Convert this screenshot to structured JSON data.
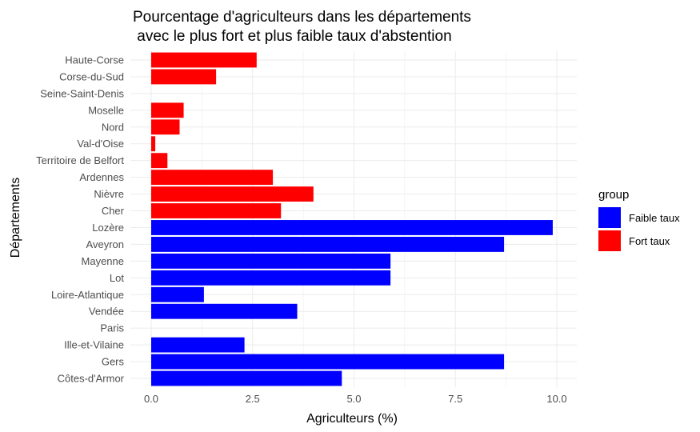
{
  "chart_data": {
    "type": "bar",
    "orientation": "horizontal",
    "title": [
      "Pourcentage d'agriculteurs dans les départements",
      " avec le plus fort et plus faible taux d'abstention"
    ],
    "xlabel": "Agriculteurs (%)",
    "ylabel": "Départements",
    "xlim": [
      0,
      10
    ],
    "xticks": [
      0,
      2.5,
      5,
      7.5,
      10
    ],
    "xtick_labels": [
      "0.0",
      "2.5",
      "5.0",
      "7.5",
      "10.0"
    ],
    "grid": true,
    "legend": {
      "title": "group",
      "placement": "right",
      "items": [
        {
          "name": "Faible taux",
          "color": "#0000ff"
        },
        {
          "name": "Fort taux",
          "color": "#ff0000"
        }
      ]
    },
    "categories": [
      "Haute-Corse",
      "Corse-du-Sud",
      "Seine-Saint-Denis",
      "Moselle",
      "Nord",
      "Val-d'Oise",
      "Territoire de Belfort",
      "Ardennes",
      "Nièvre",
      "Cher",
      "Lozère",
      "Aveyron",
      "Mayenne",
      "Lot",
      "Loire-Atlantique",
      "Vendée",
      "Paris",
      "Ille-et-Vilaine",
      "Gers",
      "Côtes-d'Armor"
    ],
    "values": [
      2.6,
      1.6,
      0,
      0.8,
      0.7,
      0.1,
      0.4,
      3.0,
      4.0,
      3.2,
      9.9,
      8.7,
      5.9,
      5.9,
      1.3,
      3.6,
      0,
      2.3,
      8.7,
      4.7
    ],
    "groups": [
      "Fort taux",
      "Fort taux",
      "Fort taux",
      "Fort taux",
      "Fort taux",
      "Fort taux",
      "Fort taux",
      "Fort taux",
      "Fort taux",
      "Fort taux",
      "Faible taux",
      "Faible taux",
      "Faible taux",
      "Faible taux",
      "Faible taux",
      "Faible taux",
      "Faible taux",
      "Faible taux",
      "Faible taux",
      "Faible taux"
    ]
  }
}
